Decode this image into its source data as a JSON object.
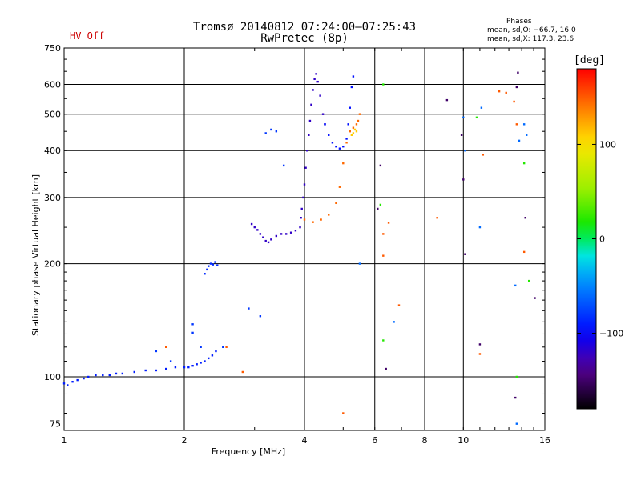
{
  "header": {
    "title_line1": "Tromsø 20140812 07:24:00–07:25:43",
    "title_line2": "RwPretec (8p)",
    "status": "HV Off"
  },
  "phase_stats": {
    "title": "Phases",
    "line_o": "mean, sd,O: −66.7, 16.0",
    "line_x": "mean, sd,X: 117.3, 23.6"
  },
  "colorbar": {
    "unit_label": "[deg]",
    "range": [
      -180,
      180
    ],
    "ticks": [
      {
        "value": 100,
        "label": "100"
      },
      {
        "value": 0,
        "label": "0"
      },
      {
        "value": -100,
        "label": "−100"
      }
    ]
  },
  "chart_data": {
    "type": "scatter",
    "xlabel": "Frequency [MHz]",
    "ylabel": "Stationary phase Virtual Height [km]",
    "x_scale": "log",
    "y_scale": "log",
    "xlim": [
      1,
      16
    ],
    "ylim": [
      72,
      750
    ],
    "grid": true,
    "x_ticks": [
      {
        "value": 1,
        "label": "1"
      },
      {
        "value": 2,
        "label": "2"
      },
      {
        "value": 4,
        "label": "4"
      },
      {
        "value": 6,
        "label": "6"
      },
      {
        "value": 8,
        "label": "8"
      },
      {
        "value": 10,
        "label": "10"
      },
      {
        "value": 16,
        "label": "16"
      }
    ],
    "x_grid": [
      2,
      4,
      6,
      8,
      10
    ],
    "y_ticks": [
      {
        "value": 75,
        "label": "75"
      },
      {
        "value": 100,
        "label": "100"
      },
      {
        "value": 200,
        "label": "200"
      },
      {
        "value": 300,
        "label": "300"
      },
      {
        "value": 400,
        "label": "400"
      },
      {
        "value": 500,
        "label": "500"
      },
      {
        "value": 600,
        "label": "600"
      },
      {
        "value": 750,
        "label": "750"
      }
    ],
    "y_grid": [
      100,
      200,
      300,
      400,
      500,
      600
    ],
    "series": [
      {
        "color_value": -90,
        "points": [
          [
            1.0,
            96
          ],
          [
            1.02,
            95
          ],
          [
            1.05,
            97
          ],
          [
            1.08,
            98
          ],
          [
            1.12,
            99
          ],
          [
            1.15,
            100
          ],
          [
            1.2,
            101
          ],
          [
            1.25,
            101
          ],
          [
            1.3,
            101
          ],
          [
            1.35,
            102
          ],
          [
            1.4,
            102
          ],
          [
            1.5,
            103
          ],
          [
            1.6,
            104
          ],
          [
            1.7,
            104
          ],
          [
            1.8,
            105
          ],
          [
            1.9,
            106
          ],
          [
            2.0,
            106
          ],
          [
            2.05,
            106
          ],
          [
            2.1,
            107
          ],
          [
            2.15,
            108
          ],
          [
            2.2,
            109
          ],
          [
            2.25,
            110
          ],
          [
            2.3,
            112
          ],
          [
            2.35,
            114
          ],
          [
            2.4,
            117
          ]
        ]
      },
      {
        "color_value": -85,
        "points": [
          [
            2.25,
            188
          ],
          [
            2.28,
            193
          ],
          [
            2.3,
            197
          ],
          [
            2.33,
            200
          ],
          [
            2.36,
            199
          ],
          [
            2.39,
            202
          ],
          [
            2.42,
            198
          ]
        ]
      },
      {
        "color_value": -120,
        "points": [
          [
            2.95,
            255
          ],
          [
            3.0,
            250
          ],
          [
            3.05,
            246
          ],
          [
            3.1,
            240
          ],
          [
            3.15,
            235
          ],
          [
            3.2,
            230
          ],
          [
            3.25,
            228
          ],
          [
            3.3,
            232
          ],
          [
            3.4,
            237
          ],
          [
            3.5,
            240
          ],
          [
            3.6,
            240
          ],
          [
            3.7,
            242
          ],
          [
            3.8,
            245
          ],
          [
            3.9,
            250
          ],
          [
            3.92,
            265
          ],
          [
            3.94,
            280
          ],
          [
            3.97,
            300
          ],
          [
            4.0,
            325
          ],
          [
            4.03,
            360
          ],
          [
            4.06,
            400
          ],
          [
            4.1,
            440
          ],
          [
            4.13,
            480
          ],
          [
            4.16,
            530
          ],
          [
            4.2,
            580
          ],
          [
            4.24,
            620
          ],
          [
            4.28,
            640
          ],
          [
            4.32,
            610
          ],
          [
            4.38,
            560
          ],
          [
            4.45,
            500
          ],
          [
            4.5,
            470
          ]
        ]
      },
      {
        "color_value": -95,
        "points": [
          [
            4.5,
            470
          ],
          [
            4.6,
            440
          ],
          [
            4.7,
            420
          ],
          [
            4.8,
            410
          ],
          [
            4.9,
            405
          ],
          [
            5.0,
            410
          ],
          [
            5.1,
            430
          ],
          [
            5.15,
            470
          ],
          [
            5.2,
            520
          ],
          [
            5.25,
            590
          ],
          [
            5.3,
            630
          ]
        ]
      },
      {
        "color_value": 145,
        "points": [
          [
            4.0,
            262
          ],
          [
            4.2,
            258
          ],
          [
            4.4,
            262
          ],
          [
            4.6,
            270
          ],
          [
            4.8,
            290
          ],
          [
            4.9,
            320
          ],
          [
            5.0,
            370
          ],
          [
            5.1,
            420
          ],
          [
            5.2,
            450
          ],
          [
            5.3,
            460
          ],
          [
            5.4,
            470
          ],
          [
            5.45,
            480
          ],
          [
            5.5,
            500
          ]
        ]
      },
      {
        "color_value": 110,
        "points": [
          [
            5.25,
            440
          ],
          [
            5.3,
            445
          ],
          [
            5.35,
            455
          ],
          [
            5.4,
            450
          ]
        ]
      },
      {
        "color_value": -80,
        "points": [
          [
            3.2,
            445
          ],
          [
            3.3,
            455
          ],
          [
            3.4,
            450
          ],
          [
            3.55,
            365
          ],
          [
            2.1,
            138
          ],
          [
            2.1,
            131
          ],
          [
            2.2,
            120
          ],
          [
            1.85,
            110
          ],
          [
            1.7,
            117
          ],
          [
            2.9,
            152
          ],
          [
            3.1,
            145
          ],
          [
            2.5,
            120
          ]
        ]
      },
      {
        "color_value": 20,
        "points": [
          [
            6.3,
            600
          ],
          [
            6.2,
            287
          ],
          [
            6.3,
            125
          ],
          [
            10.8,
            490
          ],
          [
            14.2,
            370
          ],
          [
            13.6,
            100
          ],
          [
            14.6,
            180
          ]
        ]
      },
      {
        "color_value": 150,
        "points": [
          [
            1.8,
            120
          ],
          [
            2.55,
            120
          ],
          [
            2.8,
            103
          ],
          [
            5.0,
            80
          ],
          [
            6.3,
            240
          ],
          [
            6.3,
            210
          ],
          [
            6.5,
            257
          ],
          [
            6.9,
            155
          ],
          [
            8.6,
            265
          ],
          [
            11.0,
            115
          ],
          [
            11.2,
            390
          ],
          [
            12.3,
            575
          ],
          [
            12.8,
            570
          ],
          [
            13.4,
            540
          ],
          [
            13.6,
            470
          ],
          [
            14.2,
            215
          ]
        ]
      },
      {
        "color_value": -150,
        "points": [
          [
            6.2,
            365
          ],
          [
            6.4,
            105
          ],
          [
            9.1,
            545
          ],
          [
            9.9,
            440
          ],
          [
            10.0,
            335
          ],
          [
            10.1,
            212
          ],
          [
            11.0,
            122
          ],
          [
            13.6,
            590
          ],
          [
            13.7,
            645
          ],
          [
            13.5,
            88
          ],
          [
            14.3,
            265
          ],
          [
            15.1,
            162
          ],
          [
            6.1,
            280
          ]
        ]
      },
      {
        "color_value": -60,
        "points": [
          [
            5.5,
            200
          ],
          [
            6.7,
            140
          ],
          [
            11.0,
            250
          ],
          [
            11.1,
            520
          ],
          [
            13.8,
            425
          ],
          [
            14.2,
            470
          ],
          [
            14.4,
            440
          ],
          [
            13.5,
            175
          ],
          [
            13.6,
            75
          ],
          [
            10.1,
            400
          ],
          [
            10.0,
            490
          ]
        ]
      }
    ]
  }
}
